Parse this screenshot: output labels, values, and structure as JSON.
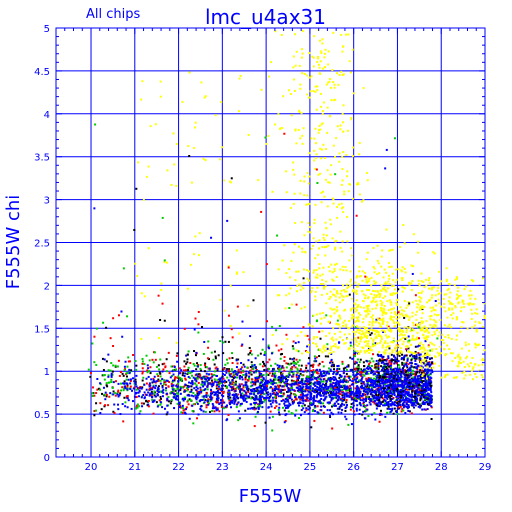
{
  "chart_data": {
    "type": "scatter",
    "title": "lmc_u4ax31",
    "subtitle": "All chips",
    "xlabel": "F555W",
    "ylabel": "F555W chi",
    "xlim": [
      19.2,
      29
    ],
    "ylim": [
      0,
      5
    ],
    "x_ticks": [
      20,
      21,
      22,
      23,
      24,
      25,
      26,
      27,
      28,
      29
    ],
    "y_ticks": [
      0,
      0.5,
      1,
      1.5,
      2,
      2.5,
      3,
      3.5,
      4,
      4.5,
      5
    ],
    "grid": true,
    "legend": "none",
    "colors": {
      "axes": "#0000ff",
      "chip_black": "#000000",
      "chip_red": "#ff0000",
      "chip_green": "#00cc00",
      "chip_blue": "#0000ff",
      "outliers_yellow": "#ffff00"
    },
    "series": [
      {
        "color": "chip_black",
        "center": [
          24.5,
          0.85
        ],
        "note_points": [
          [
            27.6,
            1.0
          ],
          [
            27.4,
            1.1
          ],
          [
            26.9,
            0.75
          ],
          [
            25.1,
            0.8
          ],
          [
            23.3,
            1.3
          ]
        ]
      },
      {
        "color": "chip_red",
        "center": [
          24.5,
          0.85
        ],
        "note_points": [
          [
            20.1,
            1.3
          ],
          [
            21.7,
            1.1
          ],
          [
            23.0,
            0.65
          ],
          [
            26.5,
            0.9
          ],
          [
            27.7,
            0.5
          ]
        ]
      },
      {
        "color": "chip_green",
        "center": [
          24.5,
          0.85
        ],
        "note_points": [
          [
            20.0,
            1.05
          ],
          [
            22.3,
            0.95
          ],
          [
            23.6,
            1.65
          ],
          [
            25.2,
            0.7
          ],
          [
            27.2,
            0.85
          ]
        ]
      },
      {
        "color": "chip_blue",
        "center": [
          25.3,
          0.8
        ],
        "note_points": [
          [
            26.0,
            0.8
          ],
          [
            27.0,
            0.8
          ],
          [
            27.5,
            0.75
          ],
          [
            24.0,
            0.7
          ],
          [
            21.5,
            0.6
          ]
        ]
      },
      {
        "color": "outliers_yellow",
        "center": [
          26.8,
          1.7
        ],
        "note_points": [
          [
            25.3,
            4.8
          ],
          [
            25.5,
            4.0
          ],
          [
            26.5,
            2.0
          ],
          [
            27.5,
            1.6
          ],
          [
            28.8,
            1.2
          ]
        ]
      }
    ]
  }
}
